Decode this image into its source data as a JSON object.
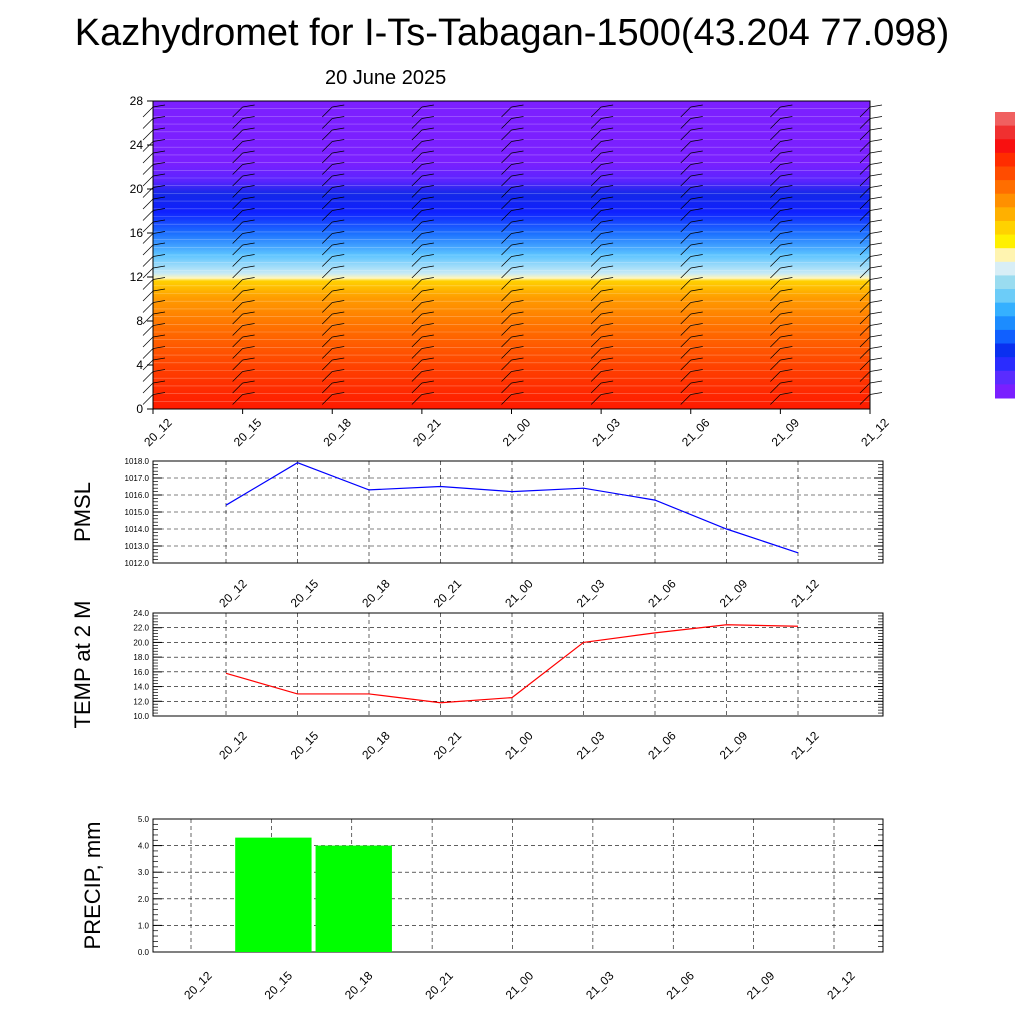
{
  "header": {
    "title": "Kazhydromet for I-Ts-Tabagan-1500(43.204 77.098)",
    "date": "20 June 2025"
  },
  "colorbar": {
    "colors": [
      "#7a1fff",
      "#5a2cff",
      "#2a2cff",
      "#0a30f0",
      "#1060ff",
      "#1c8cff",
      "#35b0ff",
      "#6cccf8",
      "#9adcf0",
      "#d8eef6",
      "#fff4b0",
      "#fff000",
      "#ffd200",
      "#ffb000",
      "#ff9000",
      "#ff6e00",
      "#ff4c00",
      "#ff2c00",
      "#f81010",
      "#f03030",
      "#f06060"
    ]
  },
  "chart_data": [
    {
      "type": "heatmap",
      "panel": "cross-section",
      "x_ticks": [
        "20_12",
        "20_15",
        "20_18",
        "20_21",
        "21_00",
        "21_03",
        "21_06",
        "21_09",
        "21_12"
      ],
      "y_ticks": [
        "0",
        "4",
        "8",
        "12",
        "16",
        "20",
        "24",
        "28"
      ],
      "ylim": [
        0,
        28
      ],
      "color_bands_by_height": [
        {
          "from": 0,
          "to": 4,
          "color": "#ff2a00"
        },
        {
          "from": 4,
          "to": 8,
          "color": "#ff6400"
        },
        {
          "from": 8,
          "to": 12,
          "color": "#ffb800"
        },
        {
          "from": 12,
          "to": 16,
          "color": "#40b8ff"
        },
        {
          "from": 16,
          "to": 21,
          "color": "#1a2cff"
        },
        {
          "from": 21,
          "to": 28,
          "color": "#7a20ff"
        }
      ],
      "grid": false
    },
    {
      "type": "line",
      "panel": "pmsl",
      "ylabel": "PMSL",
      "categories": [
        "20_12",
        "20_15",
        "20_18",
        "20_21",
        "21_00",
        "21_03",
        "21_06",
        "21_09",
        "21_12"
      ],
      "series": [
        {
          "values": [
            1015.4,
            1017.9,
            1016.3,
            1016.5,
            1016.2,
            1016.4,
            1015.7,
            1014.0,
            1012.6
          ],
          "color": "#0000ff"
        }
      ],
      "ylim": [
        1012.0,
        1018.0
      ],
      "y_ticks": [
        "1012.0",
        "1013.0",
        "1014.0",
        "1015.0",
        "1016.0",
        "1017.0",
        "1018.0"
      ],
      "grid": true
    },
    {
      "type": "line",
      "panel": "temp",
      "ylabel": "TEMP at 2 M",
      "categories": [
        "20_12",
        "20_15",
        "20_18",
        "20_21",
        "21_00",
        "21_03",
        "21_06",
        "21_09",
        "21_12"
      ],
      "series": [
        {
          "values": [
            15.8,
            13.0,
            13.0,
            11.8,
            12.5,
            20.0,
            21.3,
            22.4,
            22.2
          ],
          "color": "#ff0000"
        }
      ],
      "ylim": [
        10.0,
        24.0
      ],
      "y_ticks": [
        "10.0",
        "12.0",
        "14.0",
        "16.0",
        "18.0",
        "20.0",
        "22.0",
        "24.0"
      ],
      "grid": true
    },
    {
      "type": "bar",
      "panel": "precip",
      "ylabel": "PRECIP, mm",
      "categories": [
        "20_12",
        "20_15",
        "20_18",
        "20_21",
        "21_00",
        "21_03",
        "21_06",
        "21_09",
        "21_12"
      ],
      "values": [
        0,
        4.3,
        4.0,
        0,
        0,
        0,
        0,
        0,
        0
      ],
      "color": "#00ff00",
      "ylim": [
        0,
        5.0
      ],
      "y_ticks": [
        "0.0",
        "1.0",
        "2.0",
        "3.0",
        "4.0",
        "5.0"
      ],
      "grid": true
    }
  ]
}
